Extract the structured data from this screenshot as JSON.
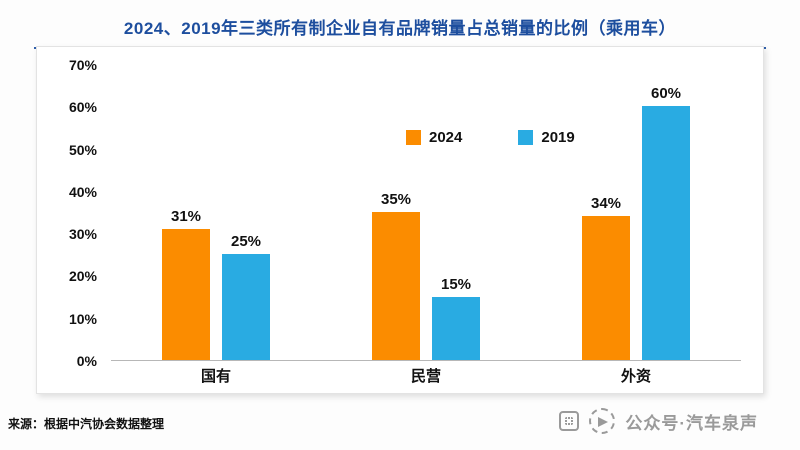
{
  "header": {
    "title": "2024、2019年三类所有制企业自有品牌销量占总销量的比例（乘用车）"
  },
  "chart_data": {
    "type": "bar",
    "title": "2024、2019年三类所有制企业自有品牌销量占总销量的比例（乘用车）",
    "categories": [
      "国有",
      "民营",
      "外资"
    ],
    "series": [
      {
        "name": "2024",
        "color": "#fb8c00",
        "values": [
          31,
          35,
          34
        ]
      },
      {
        "name": "2019",
        "color": "#29abe2",
        "values": [
          25,
          15,
          60
        ]
      }
    ],
    "value_suffix": "%",
    "ylim": [
      0,
      70
    ],
    "yticks": [
      0,
      10,
      20,
      30,
      40,
      50,
      60,
      70
    ],
    "grid": false,
    "legend_position": "top-center"
  },
  "legend": {
    "items": [
      {
        "label": "2024",
        "color": "#fb8c00"
      },
      {
        "label": "2019",
        "color": "#29abe2"
      }
    ]
  },
  "footer": {
    "source": "来源：根据中汽协会数据整理"
  },
  "watermark": {
    "text": "公众号·汽车泉声"
  }
}
